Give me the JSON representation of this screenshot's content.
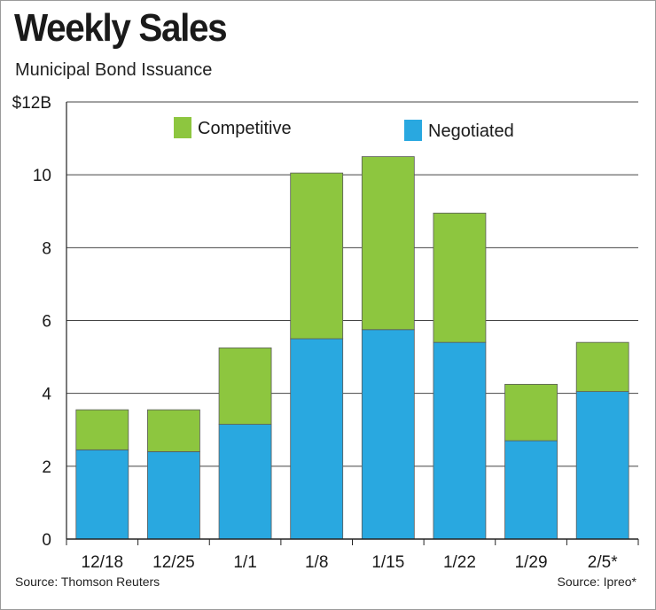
{
  "title": "Weekly Sales",
  "subtitle": "Municipal Bond Issuance",
  "source_left": "Source: Thomson Reuters",
  "source_right": "Source: Ipreo*",
  "colors": {
    "competitive": "#8dc63f",
    "negotiated": "#29a8e0",
    "grid": "#444444"
  },
  "chart_data": {
    "type": "bar",
    "stacked": true,
    "categories": [
      "12/18",
      "12/25",
      "1/1",
      "1/8",
      "1/15",
      "1/22",
      "1/29",
      "2/5*"
    ],
    "series": [
      {
        "name": "Negotiated",
        "values": [
          2.45,
          2.4,
          3.15,
          5.5,
          5.75,
          5.4,
          2.7,
          4.05
        ]
      },
      {
        "name": "Competitive",
        "values": [
          1.1,
          1.15,
          2.1,
          4.55,
          4.75,
          3.55,
          1.55,
          1.35
        ]
      }
    ],
    "ylim": [
      0,
      12
    ],
    "yticks": [
      0,
      2,
      4,
      6,
      8,
      10,
      12
    ],
    "ytick_labels": [
      "0",
      "2",
      "4",
      "6",
      "8",
      "10",
      "$12B"
    ],
    "legend": [
      {
        "name": "Competitive",
        "color_key": "competitive"
      },
      {
        "name": "Negotiated",
        "color_key": "negotiated"
      }
    ],
    "legend_placement": "top-inside",
    "grid": true
  }
}
